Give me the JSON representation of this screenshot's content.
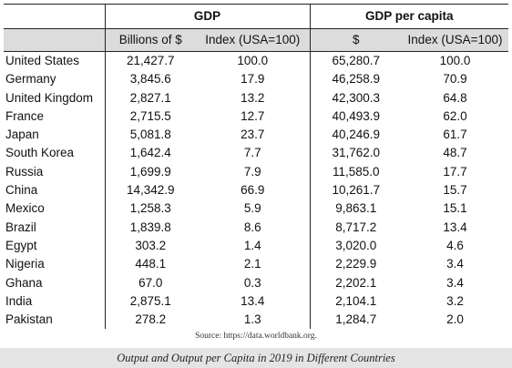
{
  "table": {
    "group_headers": {
      "gdp": "GDP",
      "gdp_per_capita": "GDP per capita"
    },
    "unit_headers": {
      "gdp_billions": "Billions of $",
      "gdp_index": "Index (USA=100)",
      "pc_dollars": "$",
      "pc_index": "Index (USA=100)"
    },
    "rows": [
      {
        "country": "United States",
        "gdp": "21,427.7",
        "gdp_index": "100.0",
        "pc": "65,280.7",
        "pc_index": "100.0"
      },
      {
        "country": "Germany",
        "gdp": "3,845.6",
        "gdp_index": "17.9",
        "pc": "46,258.9",
        "pc_index": "70.9"
      },
      {
        "country": "United Kingdom",
        "gdp": "2,827.1",
        "gdp_index": "13.2",
        "pc": "42,300.3",
        "pc_index": "64.8"
      },
      {
        "country": "France",
        "gdp": "2,715.5",
        "gdp_index": "12.7",
        "pc": "40,493.9",
        "pc_index": "62.0"
      },
      {
        "country": "Japan",
        "gdp": "5,081.8",
        "gdp_index": "23.7",
        "pc": "40,246.9",
        "pc_index": "61.7"
      },
      {
        "country": "South Korea",
        "gdp": "1,642.4",
        "gdp_index": "7.7",
        "pc": "31,762.0",
        "pc_index": "48.7"
      },
      {
        "country": "Russia",
        "gdp": "1,699.9",
        "gdp_index": "7.9",
        "pc": "11,585.0",
        "pc_index": "17.7"
      },
      {
        "country": "China",
        "gdp": "14,342.9",
        "gdp_index": "66.9",
        "pc": "10,261.7",
        "pc_index": "15.7"
      },
      {
        "country": "Mexico",
        "gdp": "1,258.3",
        "gdp_index": "5.9",
        "pc": "9,863.1",
        "pc_index": "15.1"
      },
      {
        "country": "Brazil",
        "gdp": "1,839.8",
        "gdp_index": "8.6",
        "pc": "8,717.2",
        "pc_index": "13.4"
      },
      {
        "country": "Egypt",
        "gdp": "303.2",
        "gdp_index": "1.4",
        "pc": "3,020.0",
        "pc_index": "4.6"
      },
      {
        "country": "Nigeria",
        "gdp": "448.1",
        "gdp_index": "2.1",
        "pc": "2,229.9",
        "pc_index": "3.4"
      },
      {
        "country": "Ghana",
        "gdp": "67.0",
        "gdp_index": "0.3",
        "pc": "2,202.1",
        "pc_index": "3.4"
      },
      {
        "country": "India",
        "gdp": "2,875.1",
        "gdp_index": "13.4",
        "pc": "2,104.1",
        "pc_index": "3.2"
      },
      {
        "country": "Pakistan",
        "gdp": "278.2",
        "gdp_index": "1.3",
        "pc": "1,284.7",
        "pc_index": "2.0"
      }
    ]
  },
  "source_note": "Source: https://data.worldbank.org.",
  "caption": "Output and Output per Capita in 2019 in Different Countries",
  "colors": {
    "header_shade": "#dcdcdc",
    "caption_bar": "#e4e4e4",
    "rule": "#222222"
  }
}
